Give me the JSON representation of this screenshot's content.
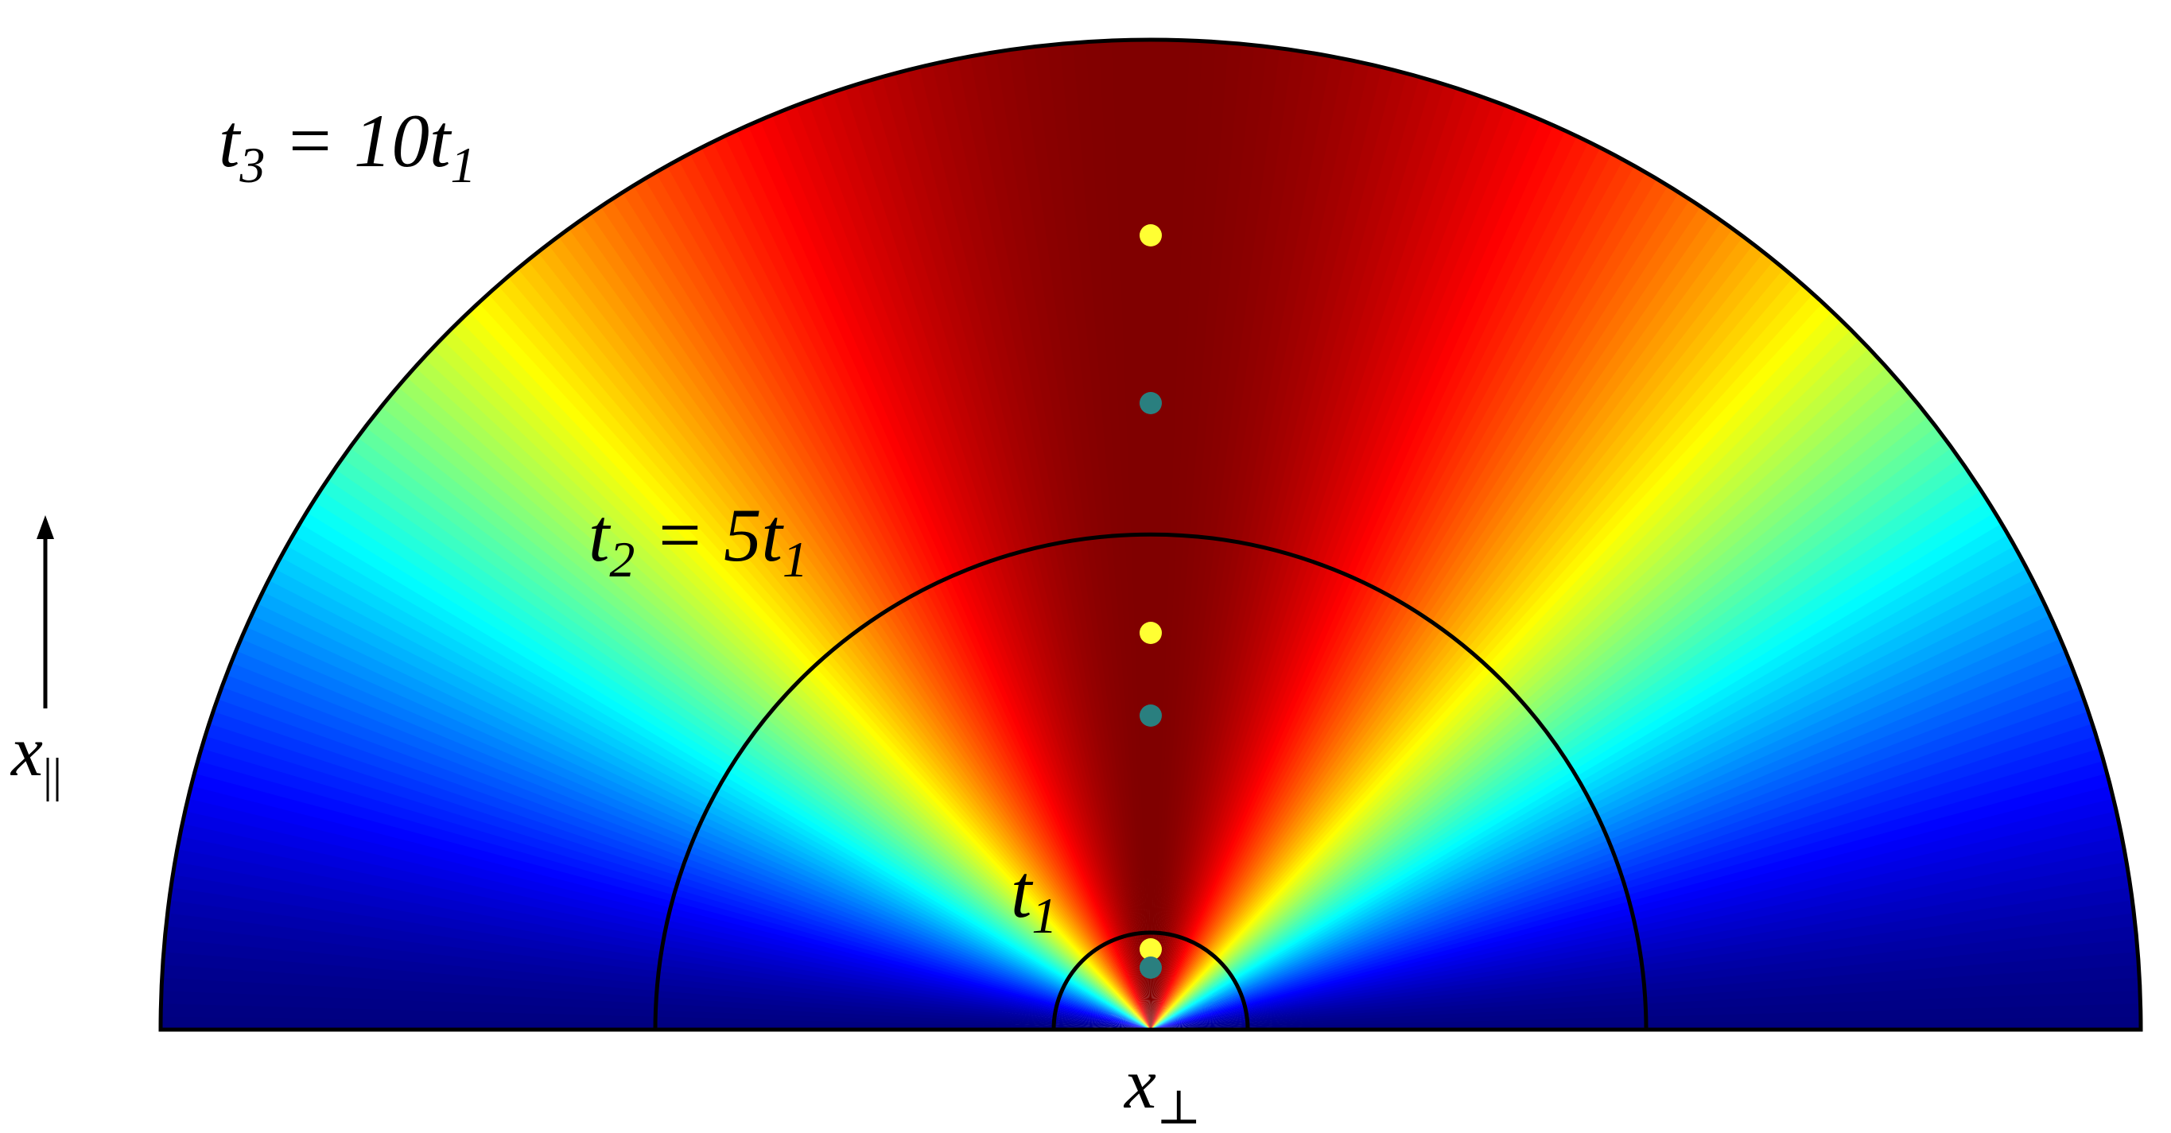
{
  "labels": {
    "t3": [
      {
        "main": "t",
        "sub": "3"
      },
      {
        "main": " = 10t",
        "sub": "1"
      }
    ],
    "t2": [
      {
        "main": "t",
        "sub": "2"
      },
      {
        "main": " = 5t",
        "sub": "1"
      }
    ],
    "t1": [
      {
        "main": "t",
        "sub": "1"
      }
    ],
    "x_parallel": [
      {
        "main": "x",
        "sub": "||"
      }
    ],
    "x_perp": [
      {
        "main": "x",
        "sub": "⊥"
      }
    ]
  }
}
